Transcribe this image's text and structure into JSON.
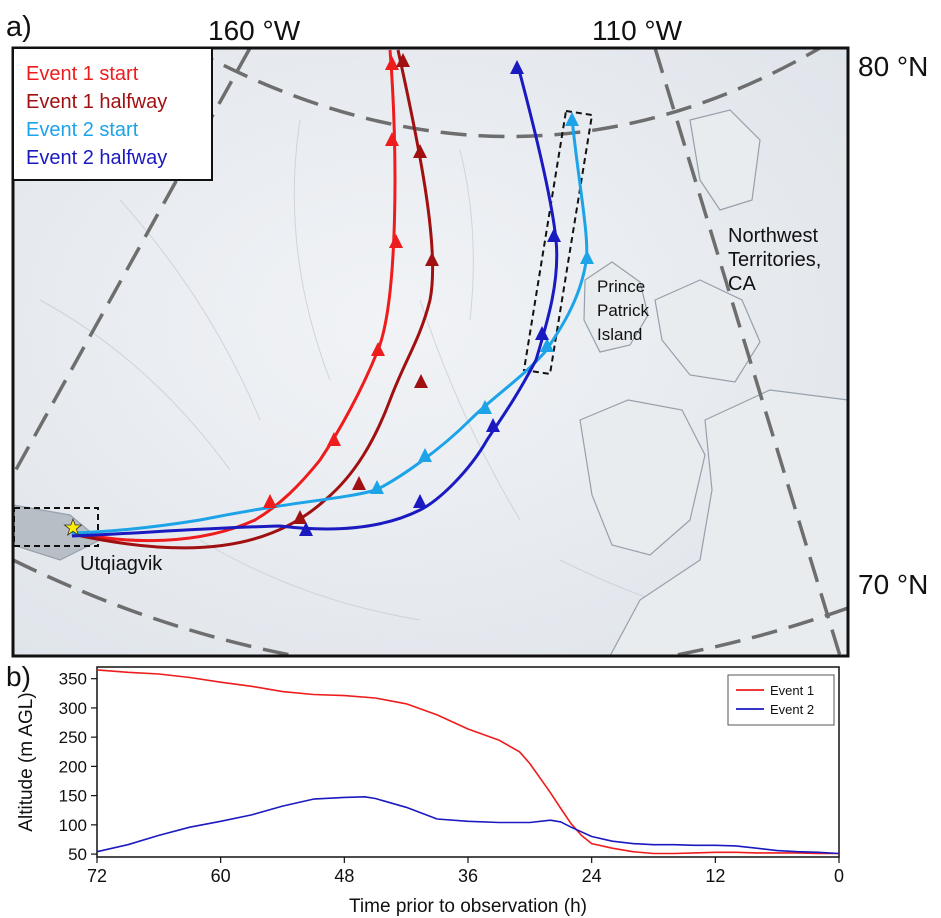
{
  "panel_a": {
    "label": "a)",
    "longitude_labels": [
      "160 °W",
      "110 °W"
    ],
    "latitude_labels": [
      "80 °N",
      "70 °N"
    ],
    "place_labels": {
      "nwt_line1": "Northwest",
      "nwt_line2": "Territories,",
      "nwt_line3": "CA",
      "ppi_line1": "Prince",
      "ppi_line2": "Patrick",
      "ppi_line3": "Island",
      "site": "Utqiagvik"
    },
    "legend": [
      {
        "label": "Event 1 start",
        "color": "#ee1c1c"
      },
      {
        "label": "Event 1 halfway",
        "color": "#a01010"
      },
      {
        "label": "Event 2 start",
        "color": "#1ca3e8"
      },
      {
        "label": "Event 2 halfway",
        "color": "#1a1ac0"
      }
    ],
    "colors": {
      "map_background": "#e6eaf0",
      "graticule": "#6e6e6e",
      "site_marker": "#ffee00"
    }
  },
  "chart_data": {
    "panel_label": "b)",
    "type": "line",
    "xlabel": "Time prior to observation (h)",
    "ylabel": "Altitude (m AGL)",
    "xlim": [
      72,
      0
    ],
    "ylim": [
      45,
      370
    ],
    "x_reversed": true,
    "xticks": [
      72,
      60,
      48,
      36,
      24,
      12,
      0
    ],
    "yticks": [
      50,
      100,
      150,
      200,
      250,
      300,
      350
    ],
    "grid": false,
    "legend_position": "top-right",
    "series": [
      {
        "name": "Event 1",
        "color": "#ee1c1c",
        "x": [
          72,
          69,
          66,
          63,
          60,
          57,
          54,
          51,
          48,
          45,
          42,
          39,
          36,
          33,
          31,
          30,
          29,
          28,
          27,
          26,
          25,
          24,
          22,
          20,
          18,
          16,
          14,
          12,
          10,
          8,
          6,
          4,
          2,
          0
        ],
        "y": [
          365,
          361,
          358,
          352,
          344,
          337,
          328,
          323,
          321,
          317,
          307,
          288,
          264,
          245,
          225,
          205,
          180,
          155,
          128,
          102,
          82,
          68,
          60,
          54,
          51,
          51,
          52,
          53,
          53,
          52,
          52,
          52,
          51,
          51
        ]
      },
      {
        "name": "Event 2",
        "color": "#1a1ac0",
        "x": [
          72,
          69,
          66,
          63,
          60,
          57,
          54,
          51,
          48,
          46,
          45,
          42,
          39,
          36,
          33,
          30,
          28,
          27,
          26,
          24,
          22,
          20,
          18,
          16,
          14,
          12,
          10,
          8,
          6,
          4,
          2,
          0
        ],
        "y": [
          54,
          66,
          82,
          96,
          106,
          117,
          132,
          144,
          147,
          148,
          145,
          130,
          110,
          106,
          104,
          104,
          108,
          105,
          96,
          80,
          72,
          68,
          66,
          66,
          65,
          65,
          64,
          60,
          56,
          54,
          53,
          51
        ]
      }
    ]
  }
}
